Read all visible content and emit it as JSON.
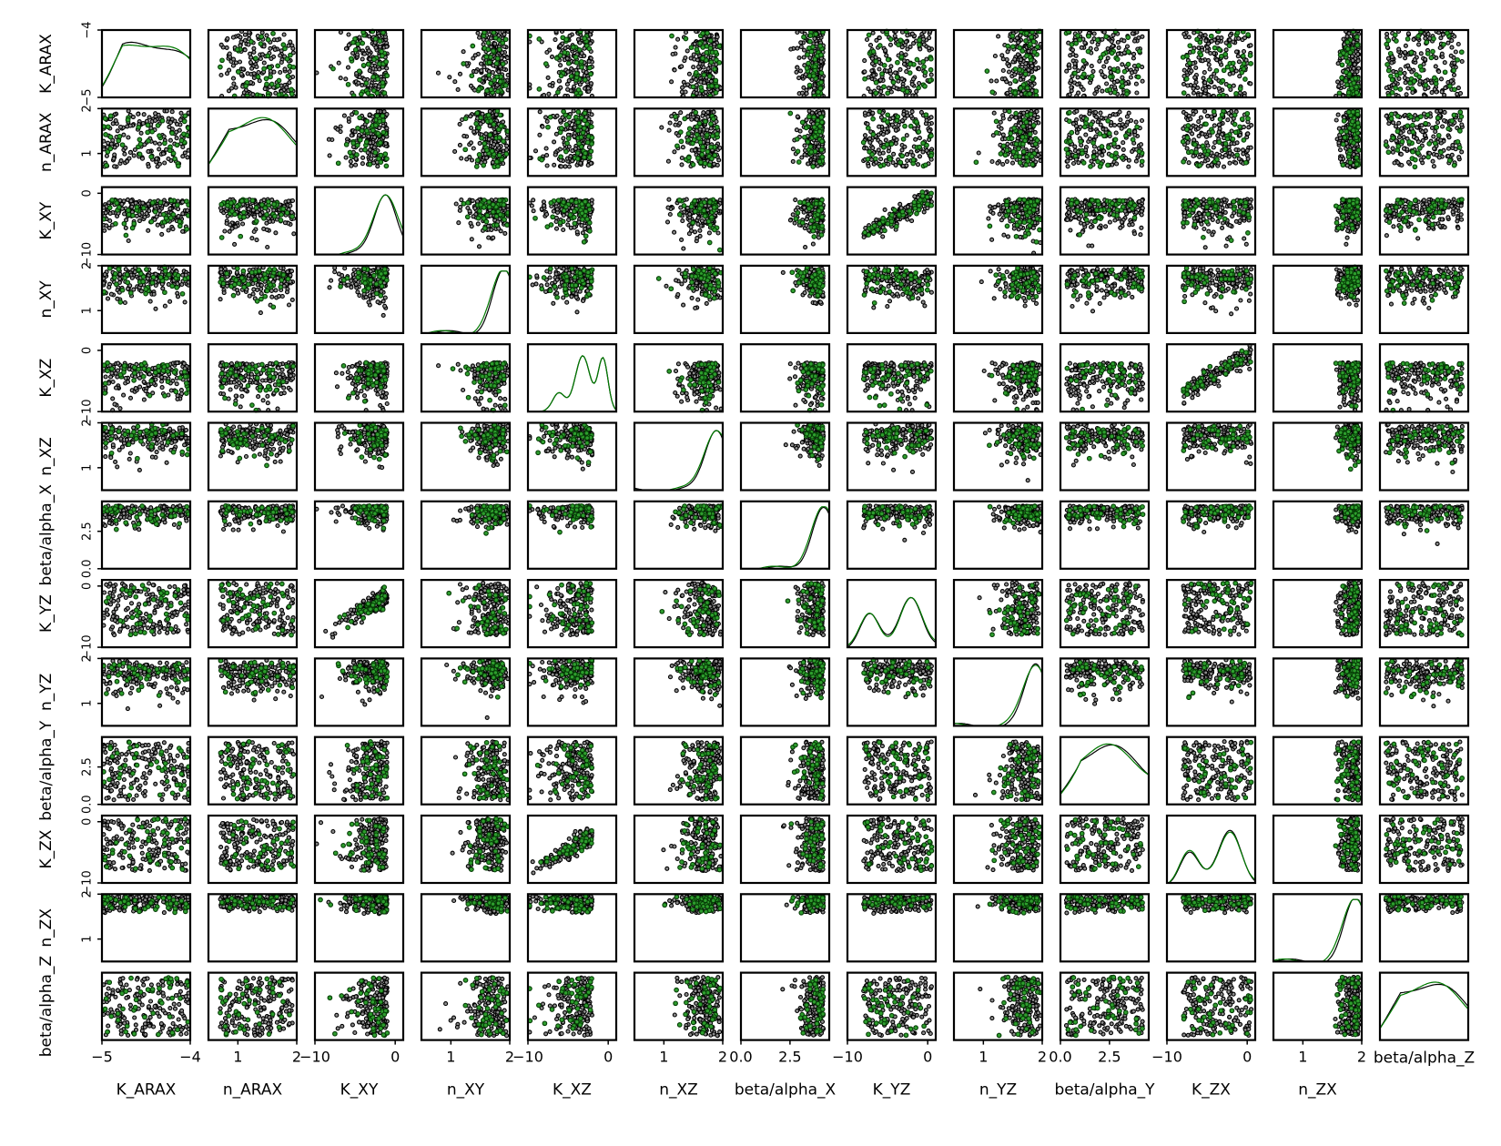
{
  "chart_data": {
    "type": "scatter",
    "layout": "pairplot-matrix",
    "diagonal": "kde",
    "variables": [
      {
        "name": "K_ARAX",
        "range": [
          -5,
          -4
        ],
        "ticks": [
          -5,
          -4
        ],
        "tick_labels": [
          "−5",
          "−4"
        ]
      },
      {
        "name": "n_ARAX",
        "range": [
          0.5,
          2
        ],
        "ticks": [
          1,
          2
        ],
        "tick_labels": [
          "1",
          "2"
        ]
      },
      {
        "name": "K_XY",
        "range": [
          -10,
          1
        ],
        "ticks": [
          -10,
          0
        ],
        "tick_labels": [
          "−10",
          "0"
        ]
      },
      {
        "name": "n_XY",
        "range": [
          0.5,
          2
        ],
        "ticks": [
          1,
          2
        ],
        "tick_labels": [
          "1",
          "2"
        ]
      },
      {
        "name": "K_XZ",
        "range": [
          -10,
          1
        ],
        "ticks": [
          -10,
          0
        ],
        "tick_labels": [
          "−10",
          "0"
        ]
      },
      {
        "name": "n_XZ",
        "range": [
          0.5,
          2
        ],
        "ticks": [
          1,
          2
        ],
        "tick_labels": [
          "1",
          "2"
        ]
      },
      {
        "name": "beta/alpha_X",
        "range": [
          0,
          4.5
        ],
        "ticks": [
          0,
          2.5
        ],
        "tick_labels": [
          "0.0",
          "2.5"
        ]
      },
      {
        "name": "K_YZ",
        "range": [
          -10,
          1
        ],
        "ticks": [
          -10,
          0
        ],
        "tick_labels": [
          "−10",
          "0"
        ]
      },
      {
        "name": "n_YZ",
        "range": [
          0.5,
          2
        ],
        "ticks": [
          1,
          2
        ],
        "tick_labels": [
          "1",
          "2"
        ]
      },
      {
        "name": "beta/alpha_Y",
        "range": [
          0,
          4.5
        ],
        "ticks": [
          0,
          2.5
        ],
        "tick_labels": [
          "0.0",
          "2.5"
        ]
      },
      {
        "name": "K_ZX",
        "range": [
          -10,
          1
        ],
        "ticks": [
          -10,
          0
        ],
        "tick_labels": [
          "−10",
          "0"
        ]
      },
      {
        "name": "n_ZX",
        "range": [
          0.5,
          2
        ],
        "ticks": [
          1,
          2
        ],
        "tick_labels": [
          "1",
          "2"
        ]
      },
      {
        "name": "beta/alpha_Z",
        "range": [
          0,
          4.5
        ],
        "ticks": [],
        "tick_labels": []
      }
    ],
    "series": [
      {
        "color": "#000000",
        "marker_face": "#8c8c8c"
      },
      {
        "color": "#007a00",
        "marker_face": "#2e9e2e"
      }
    ],
    "correlated_pairs": [
      {
        "x": "K_YZ",
        "y": "K_XY",
        "slope": 0.45
      },
      {
        "x": "K_XY",
        "y": "K_YZ",
        "slope": 1.6
      },
      {
        "x": "K_ZX",
        "y": "K_XZ",
        "slope": 0.55
      },
      {
        "x": "K_XZ",
        "y": "K_ZX",
        "slope": 1.4
      }
    ],
    "legend": "none",
    "grid": false
  }
}
